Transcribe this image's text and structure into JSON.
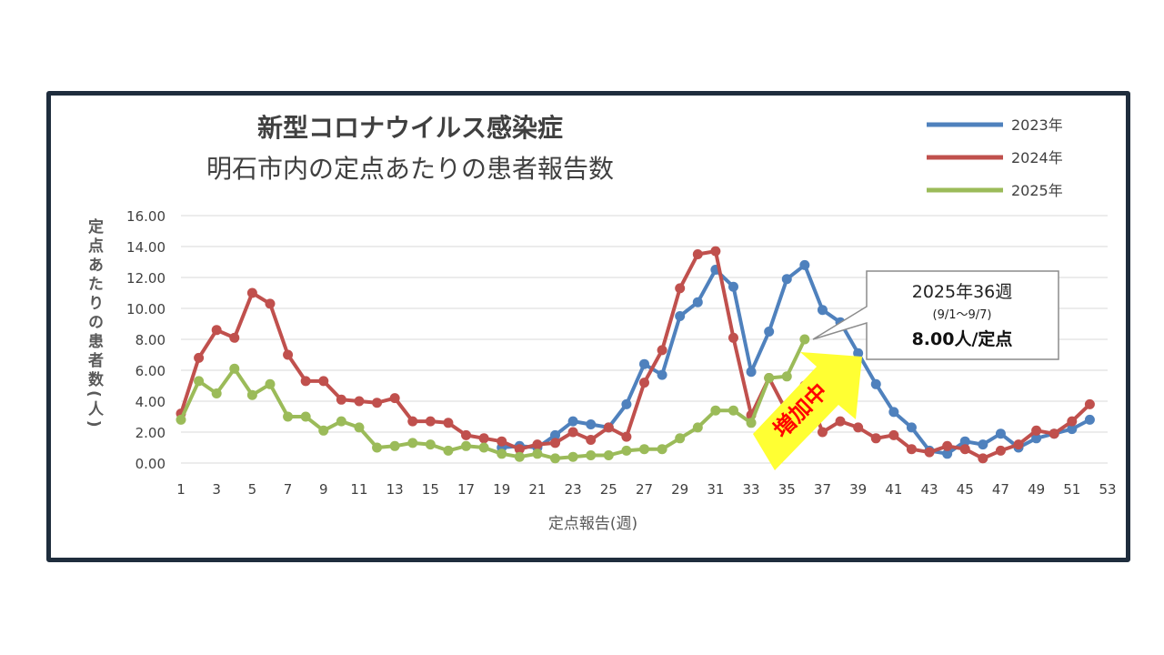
{
  "chart_data": {
    "type": "line",
    "title": "新型コロナウイルス感染症",
    "subtitle": "明石市内の定点あたりの患者報告数",
    "xlabel": "定点報告(週)",
    "ylabel": "定点あたりの患者数(人)",
    "ylim": [
      0,
      16
    ],
    "yticks": [
      "0.00",
      "2.00",
      "4.00",
      "6.00",
      "8.00",
      "10.00",
      "12.00",
      "14.00",
      "16.00"
    ],
    "xlim": [
      1,
      53
    ],
    "xticks": [
      "1",
      "3",
      "5",
      "7",
      "9",
      "11",
      "13",
      "15",
      "17",
      "19",
      "21",
      "23",
      "25",
      "27",
      "29",
      "31",
      "33",
      "35",
      "37",
      "39",
      "41",
      "43",
      "45",
      "47",
      "49",
      "51",
      "53"
    ],
    "grid": true,
    "legend_position": "top-right",
    "series": [
      {
        "name": "2023年",
        "color": "#4f81bd",
        "values": [
          null,
          null,
          null,
          null,
          null,
          null,
          null,
          null,
          null,
          null,
          null,
          null,
          null,
          null,
          null,
          null,
          null,
          null,
          1.0,
          1.1,
          1.0,
          1.8,
          2.7,
          2.5,
          2.3,
          3.8,
          6.4,
          5.7,
          9.5,
          10.4,
          12.5,
          11.4,
          5.9,
          8.5,
          11.9,
          12.8,
          9.9,
          9.1,
          7.1,
          5.1,
          3.3,
          2.3,
          0.8,
          0.6,
          1.4,
          1.2,
          1.9,
          1.0,
          1.6,
          1.9,
          2.2,
          2.8
        ]
      },
      {
        "name": "2024年",
        "color": "#c0504d",
        "values": [
          3.2,
          6.8,
          8.6,
          8.1,
          11.0,
          10.3,
          7.0,
          5.3,
          5.3,
          4.1,
          4.0,
          3.9,
          4.2,
          2.7,
          2.7,
          2.6,
          1.8,
          1.6,
          1.4,
          0.9,
          1.2,
          1.3,
          2.0,
          1.5,
          2.3,
          1.7,
          5.2,
          7.3,
          11.3,
          13.5,
          13.7,
          8.1,
          3.1,
          5.5,
          3.3,
          5.0,
          2.0,
          2.7,
          2.3,
          1.6,
          1.8,
          0.9,
          0.7,
          1.1,
          0.9,
          0.3,
          0.8,
          1.2,
          2.1,
          1.9,
          2.7,
          3.8
        ]
      },
      {
        "name": "2025年",
        "color": "#9bbb59",
        "values": [
          2.8,
          5.3,
          4.5,
          6.1,
          4.4,
          5.1,
          3.0,
          3.0,
          2.1,
          2.7,
          2.3,
          1.0,
          1.1,
          1.3,
          1.2,
          0.8,
          1.1,
          1.0,
          0.6,
          0.4,
          0.6,
          0.3,
          0.4,
          0.5,
          0.5,
          0.8,
          0.9,
          0.9,
          1.6,
          2.3,
          3.4,
          3.4,
          2.6,
          5.5,
          5.6,
          8.0
        ]
      }
    ],
    "annotations": {
      "callout_line1": "2025年36週",
      "callout_line2": "(9/1～9/7)",
      "callout_line3": "8.00人/定点",
      "arrow_label": "増加中"
    }
  }
}
